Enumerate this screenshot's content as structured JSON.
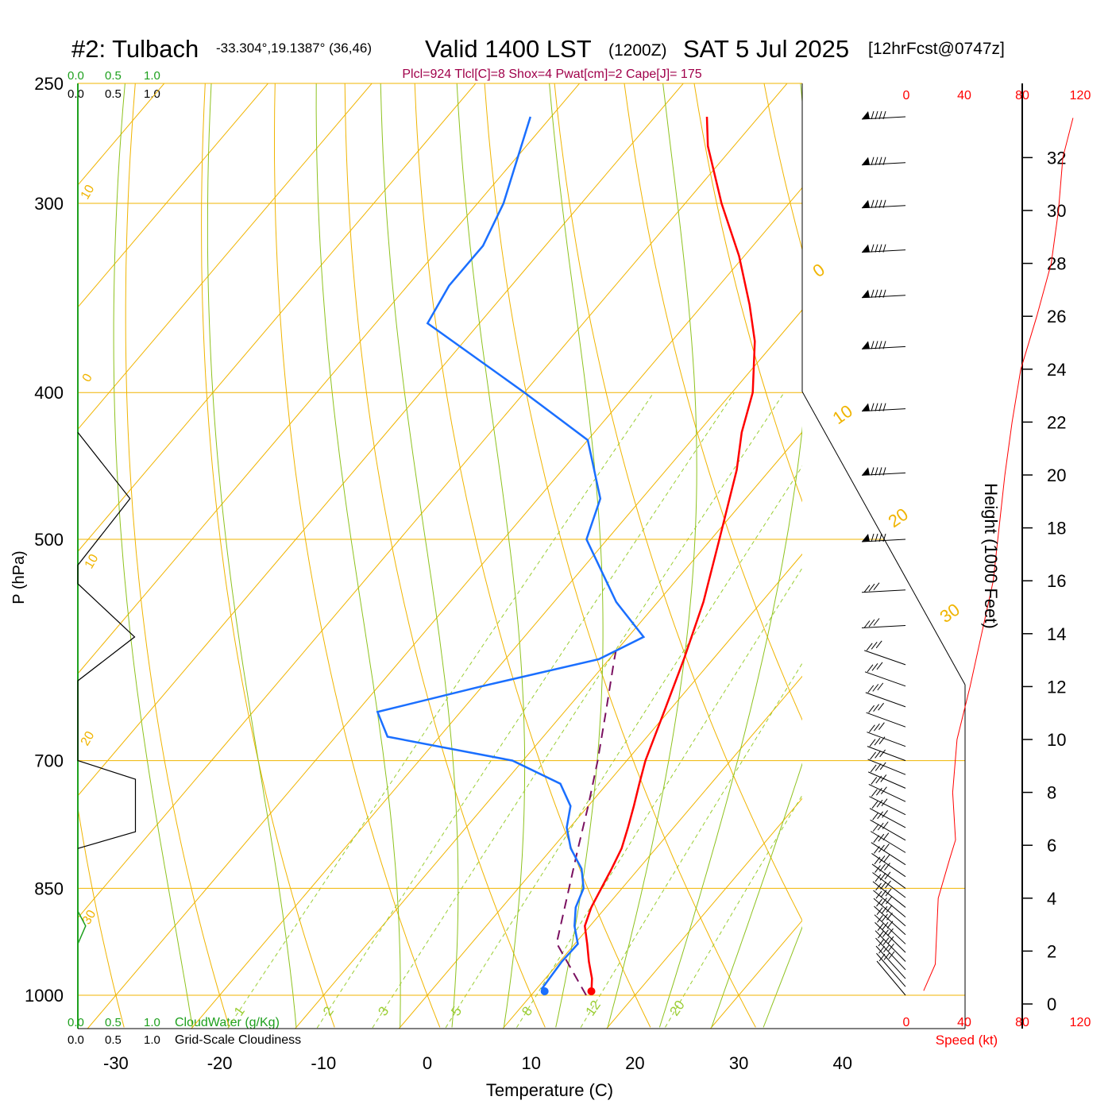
{
  "header": {
    "station": "#2: Tulbach",
    "coords": "-33.304°,19.1387° (36,46)",
    "valid": "Valid 1400 LST",
    "zulu": "(1200Z)",
    "date": "SAT 5 Jul 2025",
    "forecast": "[12hrFcst@0747z]"
  },
  "indices": "Plcl=924 Tlcl[C]=8 Shox=4 Pwat[cm]=2 Cape[J]= 175",
  "cloud_scale": {
    "ticks": [
      "0.0",
      "0.5",
      "1.0"
    ],
    "cloudwater_label": "CloudWater (g/Kg)",
    "cloudiness_label": "Grid-Scale Cloudiness"
  },
  "speed_axis": {
    "ticks": [
      "0",
      "40",
      "80",
      "120"
    ],
    "label": "Speed (kt)"
  },
  "height_axis": {
    "label": "Height (1000 Feet)",
    "ticks": [
      "0",
      "2",
      "4",
      "6",
      "8",
      "10",
      "12",
      "14",
      "16",
      "18",
      "20",
      "22",
      "24",
      "26",
      "28",
      "30",
      "32"
    ]
  },
  "colors": {
    "isotherm": "#f0b400",
    "dry_adiabat": "#f0b400",
    "moist_adiabat": "#8ec21e",
    "mixing_ratio": "#9acd32",
    "temperature": "#ff0000",
    "dewpoint": "#1a6fff",
    "parcel": "#7a1060",
    "cloudwater": "#1ea01e",
    "speed": "#ff0000"
  },
  "chart_data": {
    "type": "skew-t",
    "xlabel": "Temperature (C)",
    "ylabel": "P (hPa)",
    "x_ticks": [
      -30,
      -20,
      -10,
      0,
      10,
      20,
      30,
      40
    ],
    "p_ticks": [
      250,
      300,
      400,
      500,
      700,
      850,
      1000
    ],
    "dry_adiabat_labels": [
      "10",
      "0",
      "10",
      "20",
      "30"
    ],
    "moist_adiabat_labels": [
      "0",
      "10",
      "20",
      "30"
    ],
    "mixing_ratio_labels": [
      "1",
      "2",
      "3",
      "5",
      "8",
      "12",
      "20"
    ],
    "temperature": [
      {
        "p": 1000,
        "t": 15.8
      },
      {
        "p": 975,
        "t": 14.5
      },
      {
        "p": 950,
        "t": 12.8
      },
      {
        "p": 925,
        "t": 11.2
      },
      {
        "p": 900,
        "t": 9.5
      },
      {
        "p": 875,
        "t": 8.6
      },
      {
        "p": 850,
        "t": 8.0
      },
      {
        "p": 825,
        "t": 7.4
      },
      {
        "p": 800,
        "t": 6.7
      },
      {
        "p": 775,
        "t": 5.6
      },
      {
        "p": 750,
        "t": 4.4
      },
      {
        "p": 725,
        "t": 3.1
      },
      {
        "p": 700,
        "t": 1.8
      },
      {
        "p": 650,
        "t": -0.4
      },
      {
        "p": 600,
        "t": -2.8
      },
      {
        "p": 550,
        "t": -5.6
      },
      {
        "p": 500,
        "t": -9.2
      },
      {
        "p": 450,
        "t": -13.2
      },
      {
        "p": 425,
        "t": -15.8
      },
      {
        "p": 400,
        "t": -18.0
      },
      {
        "p": 370,
        "t": -22.0
      },
      {
        "p": 350,
        "t": -25.5
      },
      {
        "p": 325,
        "t": -30.5
      },
      {
        "p": 300,
        "t": -36.5
      },
      {
        "p": 275,
        "t": -42.5
      },
      {
        "p": 263,
        "t": -45.0
      }
    ],
    "dewpoint": [
      {
        "p": 1000,
        "t": 11.3
      },
      {
        "p": 990,
        "t": 10.5
      },
      {
        "p": 950,
        "t": 10.2
      },
      {
        "p": 925,
        "t": 10.3
      },
      {
        "p": 900,
        "t": 8.5
      },
      {
        "p": 875,
        "t": 7.1
      },
      {
        "p": 850,
        "t": 6.3
      },
      {
        "p": 825,
        "t": 4.5
      },
      {
        "p": 800,
        "t": 1.8
      },
      {
        "p": 775,
        "t": -0.3
      },
      {
        "p": 750,
        "t": -1.7
      },
      {
        "p": 725,
        "t": -4.5
      },
      {
        "p": 700,
        "t": -11.0
      },
      {
        "p": 675,
        "t": -25.0
      },
      {
        "p": 650,
        "t": -28.0
      },
      {
        "p": 625,
        "t": -20.0
      },
      {
        "p": 600,
        "t": -11.0
      },
      {
        "p": 580,
        "t": -8.5
      },
      {
        "p": 550,
        "t": -14.0
      },
      {
        "p": 500,
        "t": -22.0
      },
      {
        "p": 470,
        "t": -24.0
      },
      {
        "p": 430,
        "t": -30.0
      },
      {
        "p": 400,
        "t": -40.0
      },
      {
        "p": 360,
        "t": -55.0
      },
      {
        "p": 340,
        "t": -56.0
      },
      {
        "p": 320,
        "t": -56.0
      },
      {
        "p": 300,
        "t": -57.5
      },
      {
        "p": 263,
        "t": -62.0
      }
    ],
    "parcel": [
      {
        "p": 1000,
        "t": 15.3
      },
      {
        "p": 924,
        "t": 8.2
      },
      {
        "p": 850,
        "t": 4.9
      },
      {
        "p": 800,
        "t": 2.5
      },
      {
        "p": 750,
        "t": 0.0
      },
      {
        "p": 700,
        "t": -2.8
      },
      {
        "p": 650,
        "t": -6.0
      },
      {
        "p": 600,
        "t": -9.5
      },
      {
        "p": 590,
        "t": -10.2
      }
    ],
    "cloudiness": [
      {
        "p": 425,
        "v": 0
      },
      {
        "p": 470,
        "v": 0.67
      },
      {
        "p": 520,
        "v": 0
      },
      {
        "p": 535,
        "v": 0
      },
      {
        "p": 580,
        "v": 0.73
      },
      {
        "p": 620,
        "v": 0
      },
      {
        "p": 700,
        "v": 0
      },
      {
        "p": 720,
        "v": 0.74
      },
      {
        "p": 780,
        "v": 0.74
      },
      {
        "p": 800,
        "v": 0
      }
    ],
    "cloudwater": [
      {
        "p": 880,
        "v": 0
      },
      {
        "p": 900,
        "v": 0.05
      },
      {
        "p": 925,
        "v": 0
      }
    ],
    "wind_speed_profile": [
      {
        "h": 0.5,
        "s": 12
      },
      {
        "h": 1.5,
        "s": 20
      },
      {
        "h": 4,
        "s": 22
      },
      {
        "h": 5.5,
        "s": 30
      },
      {
        "h": 6.2,
        "s": 34
      },
      {
        "h": 8,
        "s": 32
      },
      {
        "h": 10,
        "s": 35
      },
      {
        "h": 12,
        "s": 44
      },
      {
        "h": 14,
        "s": 52
      },
      {
        "h": 16,
        "s": 60
      },
      {
        "h": 18,
        "s": 64
      },
      {
        "h": 20,
        "s": 68
      },
      {
        "h": 22,
        "s": 73
      },
      {
        "h": 24,
        "s": 79
      },
      {
        "h": 26,
        "s": 90
      },
      {
        "h": 28,
        "s": 100
      },
      {
        "h": 30,
        "s": 105
      },
      {
        "h": 32,
        "s": 108
      },
      {
        "h": 33.5,
        "s": 115
      }
    ],
    "wind_barbs_p": [
      263,
      282,
      301,
      322,
      345,
      373,
      410,
      452,
      500,
      540,
      570,
      605,
      625,
      645,
      665,
      685,
      700,
      715,
      730,
      745,
      760,
      775,
      790,
      805,
      820,
      835,
      850,
      862,
      875,
      888,
      900,
      912,
      925,
      937,
      950,
      962,
      975,
      987,
      1000
    ]
  }
}
